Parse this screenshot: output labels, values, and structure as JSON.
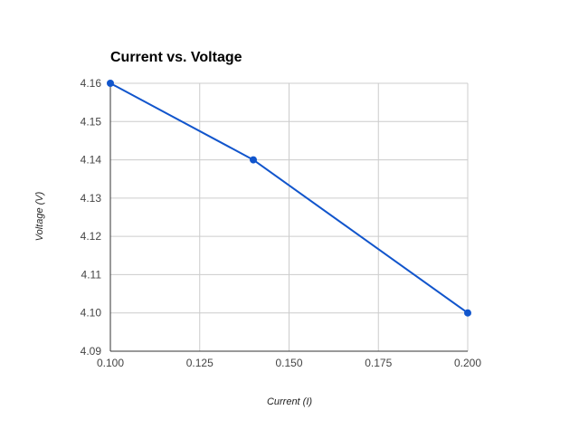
{
  "chart_data": {
    "type": "line",
    "title": "Current vs. Voltage",
    "xlabel": "Current (I)",
    "ylabel": "Voltage (V)",
    "xlim": [
      0.1,
      0.2
    ],
    "ylim": [
      4.09,
      4.16
    ],
    "xticks": [
      "0.100",
      "0.125",
      "0.150",
      "0.175",
      "0.200"
    ],
    "yticks": [
      "4.09",
      "4.10",
      "4.11",
      "4.12",
      "4.13",
      "4.14",
      "4.15",
      "4.16"
    ],
    "grid": true,
    "series": [
      {
        "x": [
          0.1,
          0.14,
          0.2
        ],
        "y": [
          4.16,
          4.14,
          4.1
        ],
        "color": "#1155cc",
        "markers": true
      }
    ]
  }
}
